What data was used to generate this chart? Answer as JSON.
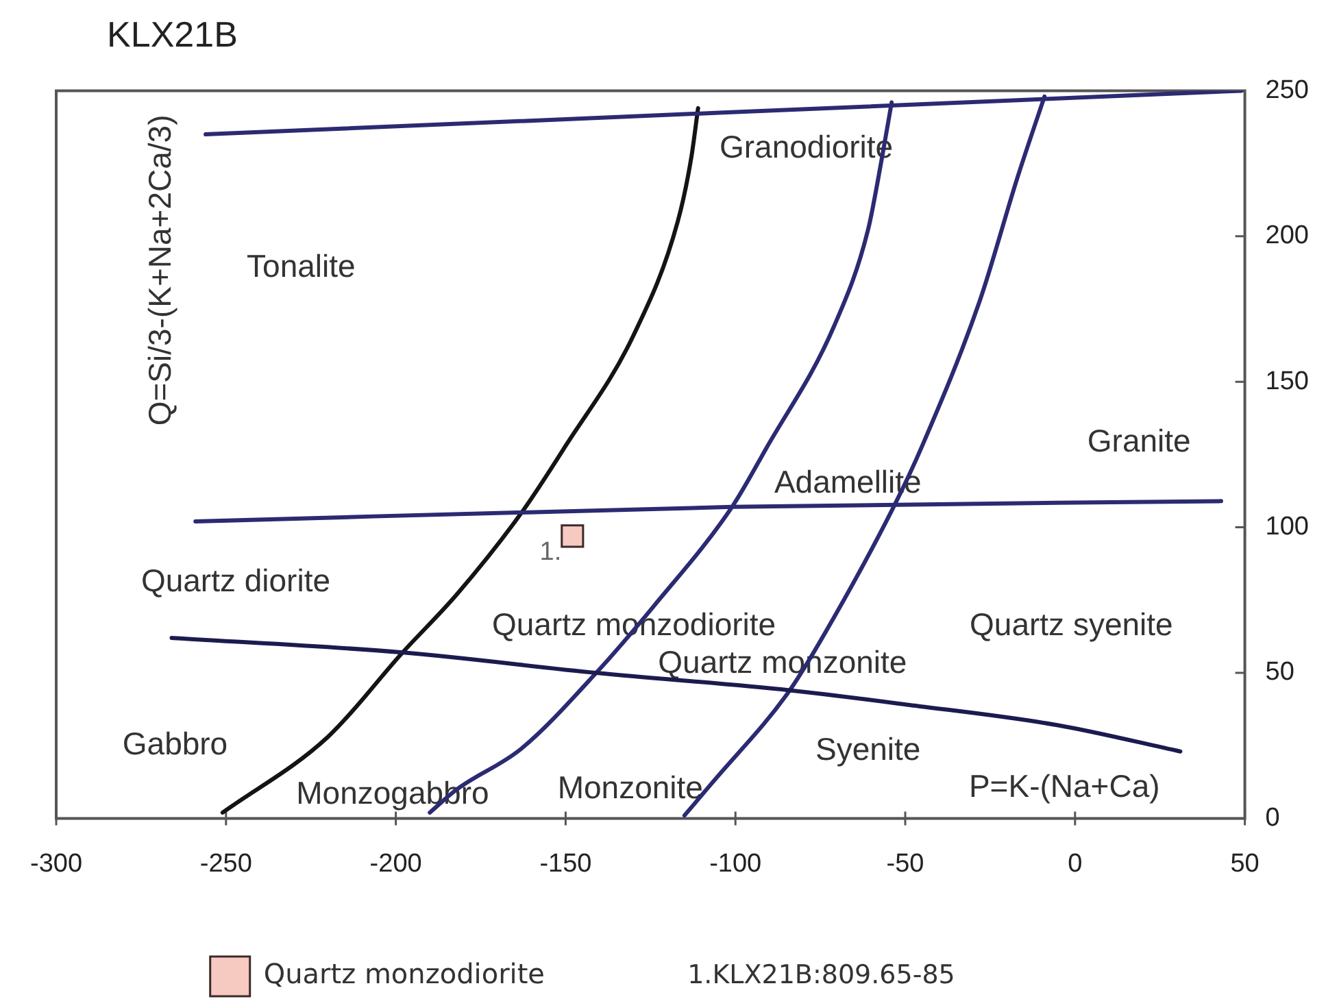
{
  "chart_data": {
    "type": "scatter",
    "title": "KLX21B",
    "xlabel": "P=K-(Na+Ca)",
    "ylabel": "Q=Si/3-(K+Na+2Ca/3)",
    "xlim": [
      -300,
      50
    ],
    "xticks": [
      -300,
      -250,
      -200,
      -150,
      -100,
      -50,
      0,
      50
    ],
    "ylim": [
      0,
      250
    ],
    "yticks": [
      0,
      50,
      100,
      150,
      200,
      250
    ],
    "grid": false,
    "legend": "bottom",
    "marker": "square",
    "series": [
      {
        "type": "line",
        "marker": "none",
        "color": "#2b2a72",
        "x": [
          -256,
          49
        ],
        "values": [
          235,
          250
        ]
      },
      {
        "type": "line",
        "marker": "none",
        "color": "#2b2a72",
        "x": [
          -259,
          -101,
          43
        ],
        "values": [
          102,
          107,
          109
        ]
      },
      {
        "type": "line",
        "marker": "none",
        "color": "#1c1b4f",
        "x": [
          -266,
          -198,
          -141,
          -84,
          -49,
          -5,
          31
        ],
        "values": [
          62,
          57,
          50,
          44,
          39,
          32,
          23
        ]
      },
      {
        "type": "line",
        "marker": "none",
        "color": "#141414",
        "x": [
          -251,
          -220,
          -198,
          -182,
          -163,
          -150,
          -130,
          -117,
          -113,
          -111
        ],
        "values": [
          2,
          28,
          57,
          77,
          105,
          128,
          166,
          205,
          227,
          244
        ]
      },
      {
        "type": "line",
        "marker": "none",
        "color": "#2b2a72",
        "x": [
          -190,
          -182,
          -163,
          -141,
          -124,
          -101,
          -91,
          -71,
          -61,
          -57,
          -54
        ],
        "values": [
          2,
          10,
          24,
          50,
          73,
          107,
          127,
          169,
          202,
          226,
          246
        ]
      },
      {
        "type": "line",
        "marker": "none",
        "color": "#2b2a72",
        "x": [
          -115,
          -107,
          -84,
          -71,
          -53,
          -45,
          -28,
          -17,
          -9
        ],
        "values": [
          1,
          12,
          44,
          69,
          108,
          128,
          178,
          220,
          248
        ]
      },
      {
        "name": "Quartz monzodiorite",
        "color": "#f6c9c1",
        "x": [
          -148
        ],
        "values": [
          97
        ]
      }
    ],
    "annotations": [
      "Tonalite",
      "Granodiorite",
      "Granite",
      "Adamellite",
      "Quartz diorite",
      "Quartz monzodiorite",
      "Quartz monzonite",
      "Quartz syenite",
      "Gabbro",
      "Monzogabbro",
      "Monzonite",
      "Syenite",
      {
        "text": "1.",
        "x": -148,
        "y": 97
      },
      "1.KLX21B:809.65-85"
    ]
  }
}
